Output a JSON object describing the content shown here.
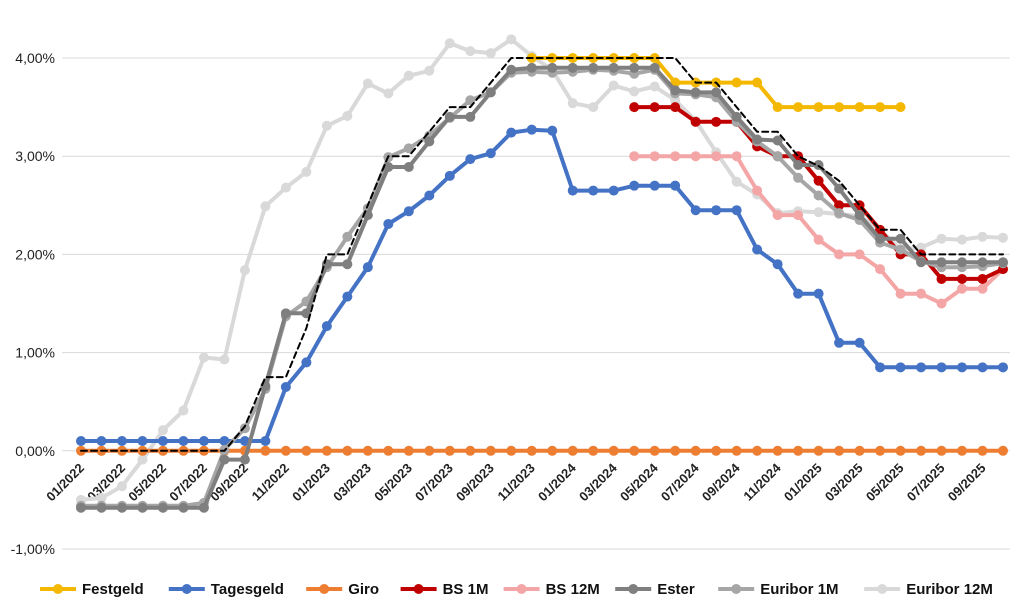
{
  "chart_data": {
    "type": "line",
    "title": "",
    "xlabel": "",
    "ylabel": "",
    "ylim": [
      -1.0,
      4.0
    ],
    "yticks": [
      -1.0,
      0.0,
      1.0,
      2.0,
      3.0,
      4.0
    ],
    "ytick_labels": [
      "-1,00%",
      "0,00%",
      "1,00%",
      "2,00%",
      "3,00%",
      "4,00%"
    ],
    "grid": "horizontal",
    "legend_position": "bottom",
    "x_count": 46,
    "x_ticks": [
      {
        "index": 0,
        "label": "01/2022"
      },
      {
        "index": 2,
        "label": "03/2022"
      },
      {
        "index": 4,
        "label": "05/2022"
      },
      {
        "index": 6,
        "label": "07/2022"
      },
      {
        "index": 8,
        "label": "09/2022"
      },
      {
        "index": 10,
        "label": "11/2022"
      },
      {
        "index": 12,
        "label": "01/2023"
      },
      {
        "index": 14,
        "label": "03/2023"
      },
      {
        "index": 16,
        "label": "05/2023"
      },
      {
        "index": 18,
        "label": "07/2023"
      },
      {
        "index": 20,
        "label": "09/2023"
      },
      {
        "index": 22,
        "label": "11/2023"
      },
      {
        "index": 24,
        "label": "01/2024"
      },
      {
        "index": 26,
        "label": "03/2024"
      },
      {
        "index": 28,
        "label": "05/2024"
      },
      {
        "index": 30,
        "label": "07/2024"
      },
      {
        "index": 32,
        "label": "09/2024"
      },
      {
        "index": 34,
        "label": "11/2024"
      },
      {
        "index": 36,
        "label": "01/2025"
      },
      {
        "index": 38,
        "label": "03/2025"
      },
      {
        "index": 40,
        "label": "05/2025"
      },
      {
        "index": 42,
        "label": "07/2025"
      },
      {
        "index": 44,
        "label": "09/2025"
      }
    ],
    "series": [
      {
        "name": "Festgeld",
        "color": "#f5b800",
        "markers": true,
        "width": 4,
        "start": 22,
        "values": [
          4.0,
          4.0,
          4.0,
          4.0,
          4.0,
          4.0,
          4.0,
          3.75,
          3.75,
          3.75,
          3.75,
          3.75,
          3.5,
          3.5,
          3.5,
          3.5,
          3.5,
          3.5,
          3.5
        ]
      },
      {
        "name": "Tagesgeld",
        "color": "#4472c4",
        "markers": true,
        "width": 4,
        "start": 0,
        "values": [
          0.1,
          0.1,
          0.1,
          0.1,
          0.1,
          0.1,
          0.1,
          0.1,
          0.1,
          0.1,
          0.65,
          0.9,
          1.27,
          1.57,
          1.87,
          2.31,
          2.44,
          2.6,
          2.8,
          2.97,
          3.03,
          3.24,
          3.27,
          3.26,
          2.65,
          2.65,
          2.65,
          2.7,
          2.7,
          2.7,
          2.45,
          2.45,
          2.45,
          2.05,
          1.9,
          1.6,
          1.6,
          1.1,
          1.1,
          0.85,
          0.85,
          0.85,
          0.85,
          0.85,
          0.85,
          0.85
        ]
      },
      {
        "name": "Giro",
        "color": "#ed7d31",
        "markers": true,
        "width": 4,
        "start": 0,
        "values": [
          0,
          0,
          0,
          0,
          0,
          0,
          0,
          0,
          0,
          0,
          0,
          0,
          0,
          0,
          0,
          0,
          0,
          0,
          0,
          0,
          0,
          0,
          0,
          0,
          0,
          0,
          0,
          0,
          0,
          0,
          0,
          0,
          0,
          0,
          0,
          0,
          0,
          0,
          0,
          0,
          0,
          0,
          0,
          0,
          0,
          0
        ]
      },
      {
        "name": "BS 1M",
        "color": "#c00000",
        "markers": true,
        "width": 4,
        "start": 27,
        "values": [
          3.5,
          3.5,
          3.5,
          3.35,
          3.35,
          3.35,
          3.1,
          3.0,
          3.0,
          2.75,
          2.5,
          2.5,
          2.25,
          2.0,
          2.0,
          1.75,
          1.75,
          1.75,
          1.85
        ]
      },
      {
        "name": "BS 12M",
        "color": "#f4a6a6",
        "markers": true,
        "width": 4,
        "start": 27,
        "values": [
          3.0,
          3.0,
          3.0,
          3.0,
          3.0,
          3.0,
          2.65,
          2.4,
          2.4,
          2.15,
          2.0,
          2.0,
          1.85,
          1.6,
          1.6,
          1.5,
          1.65,
          1.65,
          1.85
        ]
      },
      {
        "name": "Ester",
        "color": "#7f7f7f",
        "markers": true,
        "width": 4,
        "start": 0,
        "values": [
          -0.58,
          -0.58,
          -0.58,
          -0.58,
          -0.58,
          -0.58,
          -0.58,
          -0.09,
          -0.09,
          0.66,
          1.4,
          1.4,
          1.9,
          1.9,
          2.4,
          2.89,
          2.89,
          3.15,
          3.4,
          3.4,
          3.65,
          3.88,
          3.9,
          3.9,
          3.9,
          3.9,
          3.9,
          3.9,
          3.9,
          3.67,
          3.65,
          3.65,
          3.4,
          3.17,
          3.16,
          2.91,
          2.91,
          2.67,
          2.4,
          2.16,
          2.16,
          1.92,
          1.92,
          1.92,
          1.92,
          1.92
        ]
      },
      {
        "name": "Euribor 1M",
        "color": "#a6a6a6",
        "markers": true,
        "width": 4,
        "start": 0,
        "values": [
          -0.56,
          -0.56,
          -0.56,
          -0.56,
          -0.56,
          -0.56,
          -0.53,
          0.01,
          0.23,
          0.63,
          1.37,
          1.52,
          1.87,
          2.18,
          2.47,
          2.99,
          3.08,
          3.21,
          3.39,
          3.57,
          3.65,
          3.85,
          3.86,
          3.85,
          3.86,
          3.88,
          3.87,
          3.84,
          3.88,
          3.64,
          3.63,
          3.6,
          3.35,
          3.15,
          3.0,
          2.78,
          2.6,
          2.42,
          2.35,
          2.12,
          2.05,
          1.93,
          1.87,
          1.87,
          1.88,
          1.91
        ]
      },
      {
        "name": "Euribor 12M",
        "color": "#d9d9d9",
        "markers": true,
        "width": 4,
        "start": 0,
        "values": [
          -0.5,
          -0.48,
          -0.36,
          -0.09,
          0.21,
          0.41,
          0.95,
          0.93,
          1.84,
          2.49,
          2.68,
          2.84,
          3.31,
          3.41,
          3.74,
          3.64,
          3.82,
          3.87,
          4.15,
          4.07,
          4.05,
          4.19,
          4.02,
          3.88,
          3.54,
          3.5,
          3.72,
          3.66,
          3.71,
          3.57,
          3.36,
          3.04,
          2.74,
          2.61,
          2.42,
          2.44,
          2.43,
          2.41,
          2.39,
          2.25,
          2.05,
          2.07,
          2.16,
          2.15,
          2.18,
          2.17
        ]
      },
      {
        "name": "EZB Leitzins",
        "color": "#000000",
        "markers": false,
        "width": 2,
        "dashed": true,
        "legend": false,
        "start": 0,
        "values": [
          0,
          0,
          0,
          0,
          0,
          0,
          0,
          0,
          0.25,
          0.75,
          0.75,
          1.25,
          2.0,
          2.0,
          2.5,
          3.0,
          3.0,
          3.25,
          3.5,
          3.5,
          3.75,
          4.0,
          4.0,
          4.0,
          4.0,
          4.0,
          4.0,
          4.0,
          4.0,
          4.0,
          3.75,
          3.75,
          3.5,
          3.25,
          3.25,
          3.0,
          2.9,
          2.75,
          2.5,
          2.25,
          2.25,
          2.0,
          2.0,
          2.0,
          2.0,
          2.0
        ]
      }
    ]
  }
}
